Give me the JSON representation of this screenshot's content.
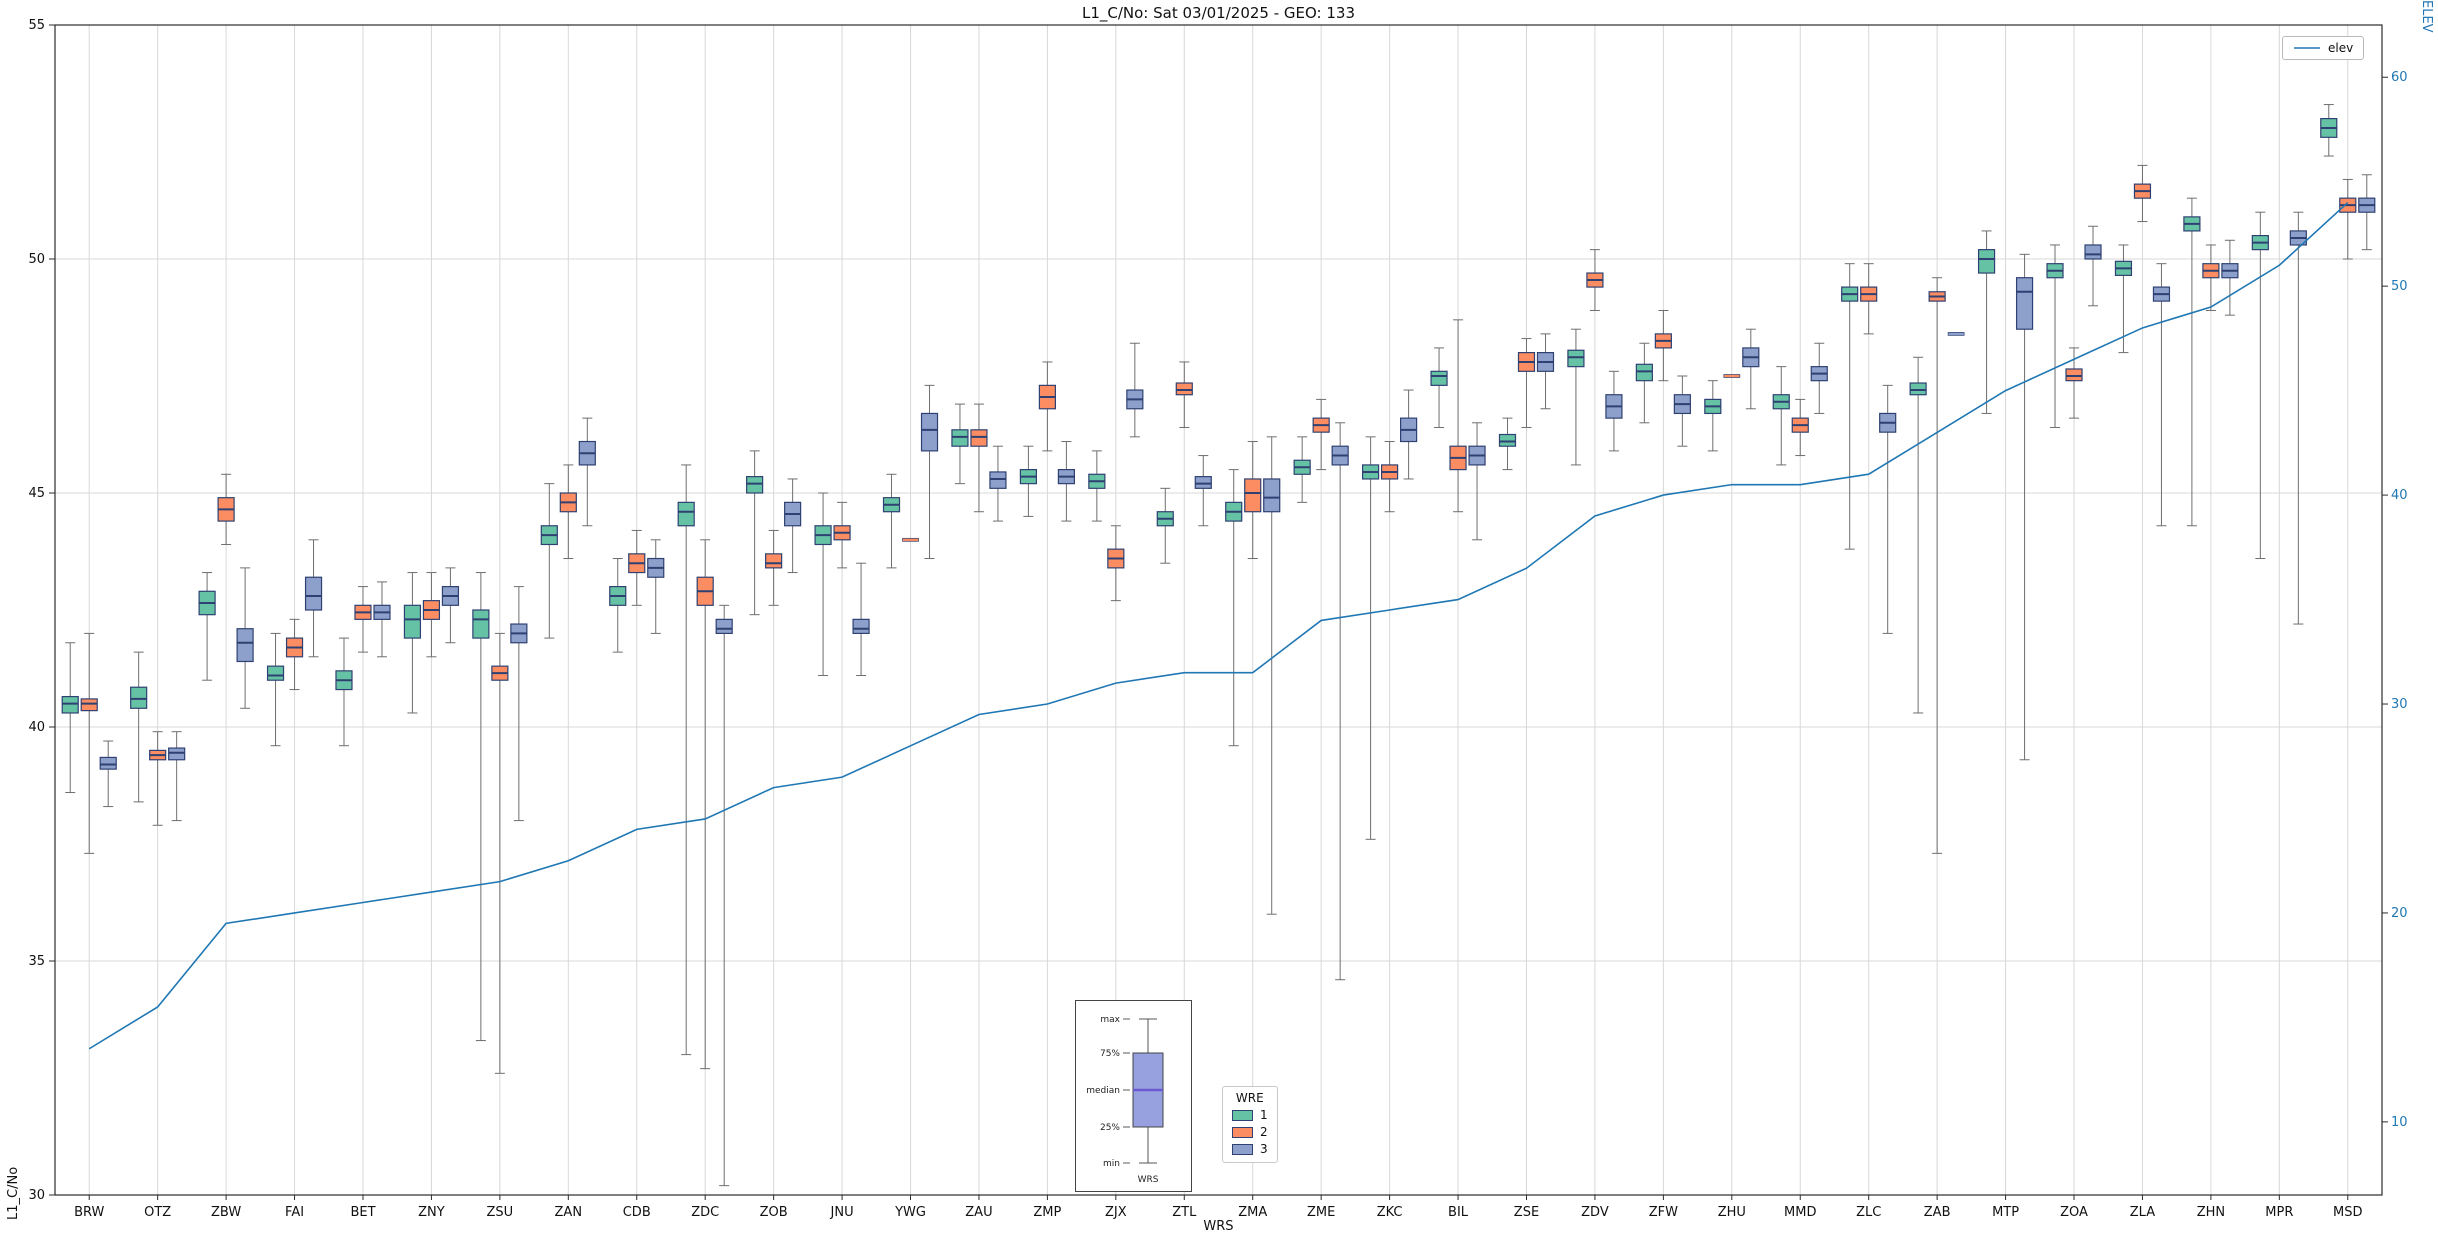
{
  "title": "L1_C/No: Sat 03/01/2025 - GEO: 133",
  "chart_data": {
    "type": "grouped_boxplot_with_line",
    "title": "L1_C/No: Sat 03/01/2025 - GEO: 133",
    "xlabel": "WRS",
    "ylabel_left": "L1_C/No",
    "ylabel_right": "ELEV",
    "grid": true,
    "left_axis": {
      "min": 30,
      "max": 55,
      "ticks": [
        30,
        35,
        40,
        45,
        50,
        55
      ]
    },
    "right_axis": {
      "min": 6.5,
      "max": 62.5,
      "ticks": [
        10,
        20,
        30,
        40,
        50,
        60
      ]
    },
    "categories": [
      "BRW",
      "OTZ",
      "ZBW",
      "FAI",
      "BET",
      "ZNY",
      "ZSU",
      "ZAN",
      "CDB",
      "ZDC",
      "ZOB",
      "JNU",
      "YWG",
      "ZAU",
      "ZMP",
      "ZJX",
      "ZTL",
      "ZMA",
      "ZME",
      "ZKC",
      "BIL",
      "ZSE",
      "ZDV",
      "ZFW",
      "ZHU",
      "MMD",
      "ZLC",
      "ZAB",
      "MTP",
      "ZOA",
      "ZLA",
      "ZHN",
      "MPR",
      "MSD"
    ],
    "series_legend": {
      "title": "WRE",
      "entries": [
        {
          "label": "1",
          "color": "#66c2a5"
        },
        {
          "label": "2",
          "color": "#fc8d62"
        },
        {
          "label": "3",
          "color": "#8da0cb"
        }
      ]
    },
    "box_edge_color": "#2f4172",
    "whisker_color": "#6e6e6e",
    "grid_color": "#d8d8d8",
    "spine_color": "#2b2b2b",
    "boxes": [
      [
        [
          38.6,
          40.3,
          40.5,
          40.65,
          41.8
        ],
        [
          37.3,
          40.35,
          40.5,
          40.6,
          42.0
        ],
        [
          38.3,
          39.1,
          39.2,
          39.35,
          39.7
        ]
      ],
      [
        [
          38.4,
          40.4,
          40.6,
          40.85,
          41.6
        ],
        [
          37.9,
          39.3,
          39.4,
          39.5,
          39.9
        ],
        [
          38.0,
          39.3,
          39.45,
          39.55,
          39.9
        ]
      ],
      [
        [
          41.0,
          42.4,
          42.65,
          42.9,
          43.3
        ],
        [
          43.9,
          44.4,
          44.65,
          44.9,
          45.4
        ],
        [
          40.4,
          41.4,
          41.8,
          42.1,
          43.4
        ]
      ],
      [
        [
          39.6,
          41.0,
          41.1,
          41.3,
          42.0
        ],
        [
          40.8,
          41.5,
          41.7,
          41.9,
          42.3
        ],
        [
          41.5,
          42.5,
          42.8,
          43.2,
          44.0
        ]
      ],
      [
        [
          39.6,
          40.8,
          41.0,
          41.2,
          41.9
        ],
        [
          41.6,
          42.3,
          42.45,
          42.6,
          43.0
        ],
        [
          41.5,
          42.3,
          42.45,
          42.6,
          43.1
        ]
      ],
      [
        [
          40.3,
          41.9,
          42.3,
          42.6,
          43.3
        ],
        [
          41.5,
          42.3,
          42.5,
          42.7,
          43.3
        ],
        [
          41.8,
          42.6,
          42.8,
          43.0,
          43.4
        ]
      ],
      [
        [
          33.3,
          41.9,
          42.3,
          42.5,
          43.3
        ],
        [
          32.6,
          41.0,
          41.15,
          41.3,
          42.0
        ],
        [
          38.0,
          41.8,
          42.0,
          42.2,
          43.0
        ]
      ],
      [
        [
          41.9,
          43.9,
          44.1,
          44.3,
          45.2
        ],
        [
          43.6,
          44.6,
          44.8,
          45.0,
          45.6
        ],
        [
          44.3,
          45.6,
          45.85,
          46.1,
          46.6
        ]
      ],
      [
        [
          41.6,
          42.6,
          42.8,
          43.0,
          43.6
        ],
        [
          42.6,
          43.3,
          43.5,
          43.7,
          44.2
        ],
        [
          42.0,
          43.2,
          43.4,
          43.6,
          44.0
        ]
      ],
      [
        [
          33.0,
          44.3,
          44.6,
          44.8,
          45.6
        ],
        [
          32.7,
          42.6,
          42.9,
          43.2,
          44.0
        ],
        [
          30.2,
          42.0,
          42.1,
          42.3,
          42.6
        ]
      ],
      [
        [
          42.4,
          45.0,
          45.2,
          45.35,
          45.9
        ],
        [
          42.6,
          43.4,
          43.5,
          43.7,
          44.2
        ],
        [
          43.3,
          44.3,
          44.55,
          44.8,
          45.3
        ]
      ],
      [
        [
          41.1,
          43.9,
          44.1,
          44.3,
          45.0
        ],
        [
          43.4,
          44.0,
          44.15,
          44.3,
          44.8
        ],
        [
          41.1,
          42.0,
          42.1,
          42.3,
          43.5
        ]
      ],
      [
        [
          43.4,
          44.6,
          44.75,
          44.9,
          45.4
        ],
        [
          44.0,
          44.0,
          44.0,
          44.0,
          44.0
        ],
        [
          43.6,
          45.9,
          46.35,
          46.7,
          47.3
        ]
      ],
      [
        [
          45.2,
          46.0,
          46.2,
          46.35,
          46.9
        ],
        [
          44.6,
          46.0,
          46.2,
          46.35,
          46.9
        ],
        [
          44.4,
          45.1,
          45.3,
          45.45,
          46.0
        ]
      ],
      [
        [
          44.5,
          45.2,
          45.35,
          45.5,
          46.0
        ],
        [
          45.9,
          46.8,
          47.05,
          47.3,
          47.8
        ],
        [
          44.4,
          45.2,
          45.35,
          45.5,
          46.1
        ]
      ],
      [
        [
          44.4,
          45.1,
          45.25,
          45.4,
          45.9
        ],
        [
          42.7,
          43.4,
          43.6,
          43.8,
          44.3
        ],
        [
          46.2,
          46.8,
          47.0,
          47.2,
          48.2
        ]
      ],
      [
        [
          43.5,
          44.3,
          44.45,
          44.6,
          45.1
        ],
        [
          46.4,
          47.1,
          47.2,
          47.35,
          47.8
        ],
        [
          44.3,
          45.1,
          45.2,
          45.35,
          45.8
        ]
      ],
      [
        [
          39.6,
          44.4,
          44.6,
          44.8,
          45.5
        ],
        [
          43.6,
          44.6,
          45.0,
          45.3,
          46.1
        ],
        [
          36.0,
          44.6,
          44.9,
          45.3,
          46.2
        ]
      ],
      [
        [
          44.8,
          45.4,
          45.55,
          45.7,
          46.2
        ],
        [
          45.5,
          46.3,
          46.45,
          46.6,
          47.0
        ],
        [
          34.6,
          45.6,
          45.8,
          46.0,
          46.5
        ]
      ],
      [
        [
          37.6,
          45.3,
          45.45,
          45.6,
          46.2
        ],
        [
          44.6,
          45.3,
          45.45,
          45.6,
          46.1
        ],
        [
          45.3,
          46.1,
          46.35,
          46.6,
          47.2
        ]
      ],
      [
        [
          46.4,
          47.3,
          47.5,
          47.6,
          48.1
        ],
        [
          44.6,
          45.5,
          45.75,
          46.0,
          48.7
        ],
        [
          44.0,
          45.6,
          45.8,
          46.0,
          46.5
        ]
      ],
      [
        [
          45.5,
          46.0,
          46.1,
          46.25,
          46.6
        ],
        [
          46.4,
          47.6,
          47.8,
          48.0,
          48.3
        ],
        [
          46.8,
          47.6,
          47.8,
          48.0,
          48.4
        ]
      ],
      [
        [
          45.6,
          47.7,
          47.9,
          48.05,
          48.5
        ],
        [
          48.9,
          49.4,
          49.55,
          49.7,
          50.2
        ],
        [
          45.9,
          46.6,
          46.85,
          47.1,
          47.6
        ]
      ],
      [
        [
          46.5,
          47.4,
          47.6,
          47.75,
          48.2
        ],
        [
          47.4,
          48.1,
          48.25,
          48.4,
          48.9
        ],
        [
          46.0,
          46.7,
          46.9,
          47.1,
          47.5
        ]
      ],
      [
        [
          45.9,
          46.7,
          46.85,
          47.0,
          47.4
        ],
        [
          47.5,
          47.5,
          47.5,
          47.5,
          47.5
        ],
        [
          46.8,
          47.7,
          47.9,
          48.1,
          48.5
        ]
      ],
      [
        [
          45.6,
          46.8,
          46.95,
          47.1,
          47.7
        ],
        [
          45.8,
          46.3,
          46.45,
          46.6,
          47.0
        ],
        [
          46.7,
          47.4,
          47.55,
          47.7,
          48.2
        ]
      ],
      [
        [
          43.8,
          49.1,
          49.25,
          49.4,
          49.9
        ],
        [
          48.4,
          49.1,
          49.25,
          49.4,
          49.9
        ],
        [
          42.0,
          46.3,
          46.5,
          46.7,
          47.3
        ]
      ],
      [
        [
          40.3,
          47.1,
          47.2,
          47.35,
          47.9
        ],
        [
          37.3,
          49.1,
          49.2,
          49.3,
          49.6
        ],
        [
          48.4,
          48.4,
          48.4,
          48.4,
          48.4
        ]
      ],
      [
        [
          46.7,
          49.7,
          50.0,
          50.2,
          50.6
        ],
        null,
        [
          39.3,
          48.5,
          49.3,
          49.6,
          50.1
        ]
      ],
      [
        [
          46.4,
          49.6,
          49.75,
          49.9,
          50.3
        ],
        [
          46.6,
          47.4,
          47.5,
          47.65,
          48.1
        ],
        [
          49.0,
          50.0,
          50.1,
          50.3,
          50.7
        ]
      ],
      [
        [
          48.0,
          49.65,
          49.8,
          49.95,
          50.3
        ],
        [
          50.8,
          51.3,
          51.45,
          51.6,
          52.0
        ],
        [
          44.3,
          49.1,
          49.25,
          49.4,
          49.9
        ]
      ],
      [
        [
          44.3,
          50.6,
          50.75,
          50.9,
          51.3
        ],
        [
          48.9,
          49.6,
          49.75,
          49.9,
          50.3
        ],
        [
          48.8,
          49.6,
          49.75,
          49.9,
          50.4
        ]
      ],
      [
        [
          43.6,
          50.2,
          50.35,
          50.5,
          51.0
        ],
        null,
        [
          42.2,
          50.3,
          50.45,
          50.6,
          51.0
        ]
      ],
      [
        [
          52.2,
          52.6,
          52.8,
          53.0,
          53.3
        ],
        [
          50.0,
          51.0,
          51.15,
          51.3,
          51.7
        ],
        [
          50.2,
          51.0,
          51.15,
          51.3,
          51.8
        ]
      ]
    ],
    "elev_line": {
      "label": "elev",
      "color": "#1f77b4",
      "values": [
        13.5,
        15.5,
        19.5,
        20,
        20.5,
        21,
        21.5,
        22.5,
        24,
        24.5,
        26,
        26.5,
        28,
        29.5,
        30,
        31,
        31.5,
        31.5,
        34,
        34.5,
        35,
        36.5,
        39,
        40,
        40.5,
        40.5,
        41,
        43,
        45,
        46.5,
        48,
        49,
        51,
        54
      ]
    },
    "inset": {
      "labels": {
        "max": "max",
        "p75": "75%",
        "median": "median",
        "p25": "25%",
        "min": "min",
        "xlabel": "WRS"
      },
      "box_fill": "#97a1e0",
      "box_edge": "#444444",
      "median_color": "#6a5acd"
    }
  }
}
